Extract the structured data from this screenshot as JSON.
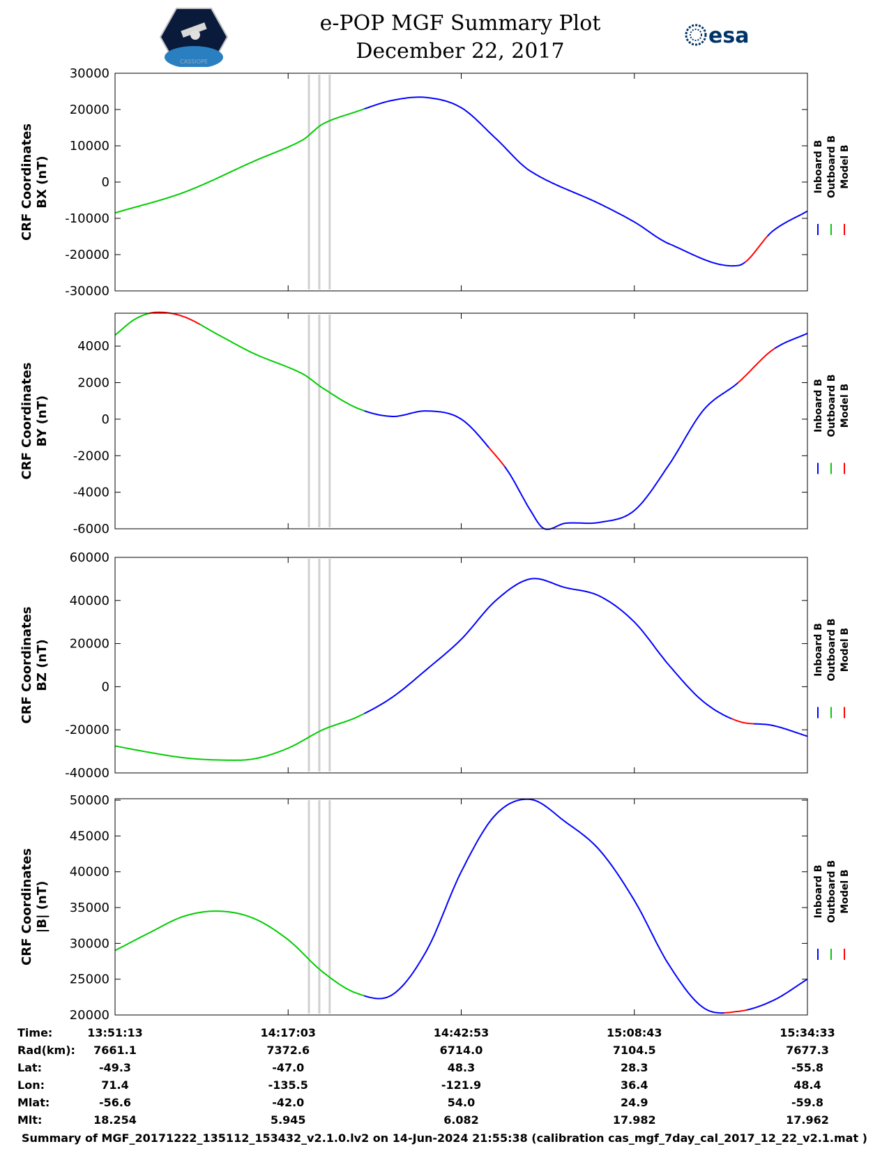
{
  "header": {
    "title": "e-POP MGF Summary Plot",
    "date": "December 22, 2017",
    "left_logo_text": "CASSIOPE",
    "right_logo_text": "esa"
  },
  "colors": {
    "inboard": "#0000ff",
    "outboard": "#00cc00",
    "model": "#ff0000",
    "gap": "#d0d0d0"
  },
  "legend": {
    "labels": [
      "Inboard B",
      "Outboard B",
      "Model B"
    ]
  },
  "chart_data": [
    {
      "type": "line",
      "ylabel_line1": "CRF Coordinates",
      "ylabel_line2": "BX (nT)",
      "ylim": [
        -30000,
        30000
      ],
      "yticks": [
        -30000,
        -20000,
        -10000,
        0,
        10000,
        20000,
        30000
      ],
      "ytick_labels": [
        "-30000",
        "-20000",
        "-10000",
        "0",
        "10000",
        "20000",
        "30000"
      ],
      "x_minutes": [
        0,
        10,
        20,
        27,
        30,
        35,
        40,
        45,
        50,
        55,
        60,
        70,
        75,
        80,
        90,
        95,
        100
      ],
      "values": [
        -8500,
        -2800,
        5700,
        11500,
        16000,
        19500,
        22500,
        23300,
        20500,
        12000,
        3000,
        -6000,
        -11000,
        -17000,
        -23000,
        -13500,
        -8000
      ],
      "green_until_min": 36,
      "red_segments_min": [
        [
          91,
          94
        ]
      ]
    },
    {
      "type": "line",
      "ylabel_line1": "CRF Coordinates",
      "ylabel_line2": "BY (nT)",
      "ylim": [
        -6000,
        5800
      ],
      "yticks": [
        -6000,
        -4000,
        -2000,
        0,
        2000,
        4000
      ],
      "ytick_labels": [
        "-6000",
        "-4000",
        "-2000",
        "0",
        "2000",
        "4000"
      ],
      "x_minutes": [
        0,
        3,
        6,
        10,
        15,
        20,
        27,
        30,
        35,
        40,
        45,
        50,
        55,
        57,
        60,
        62,
        65,
        70,
        75,
        80,
        85,
        90,
        95,
        100
      ],
      "values": [
        4600,
        5500,
        5850,
        5600,
        4600,
        3600,
        2500,
        1700,
        600,
        150,
        450,
        0,
        -2000,
        -3000,
        -5000,
        -6000,
        -5700,
        -5650,
        -5000,
        -2500,
        500,
        2000,
        3800,
        4700
      ],
      "green_until_min": 36,
      "red_segments_min": [
        [
          5,
          12
        ],
        [
          54,
          56
        ],
        [
          90,
          95
        ]
      ]
    },
    {
      "type": "line",
      "ylabel_line1": "CRF Coordinates",
      "ylabel_line2": "BZ (nT)",
      "ylim": [
        -40000,
        60000
      ],
      "yticks": [
        -40000,
        -20000,
        0,
        20000,
        40000,
        60000
      ],
      "ytick_labels": [
        "-40000",
        "-20000",
        "0",
        "20000",
        "40000",
        "60000"
      ],
      "x_minutes": [
        0,
        5,
        10,
        15,
        20,
        25,
        30,
        35,
        40,
        45,
        50,
        55,
        60,
        65,
        70,
        75,
        80,
        85,
        90,
        95,
        100
      ],
      "values": [
        -27500,
        -30500,
        -33000,
        -34000,
        -33500,
        -28500,
        -20000,
        -14000,
        -5000,
        8000,
        22000,
        40000,
        50000,
        46000,
        42000,
        30000,
        10000,
        -7000,
        -16000,
        -18000,
        -23000
      ],
      "green_until_min": 36,
      "red_segments_min": [
        [
          89,
          92
        ]
      ]
    },
    {
      "type": "line",
      "ylabel_line1": "CRF Coordinates",
      "ylabel_line2": "|B| (nT)",
      "ylim": [
        20000,
        50200
      ],
      "yticks": [
        20000,
        25000,
        30000,
        35000,
        40000,
        45000,
        50000
      ],
      "ytick_labels": [
        "20000",
        "25000",
        "30000",
        "35000",
        "40000",
        "45000",
        "50000"
      ],
      "x_minutes": [
        0,
        5,
        10,
        15,
        20,
        25,
        30,
        35,
        40,
        45,
        50,
        55,
        60,
        65,
        70,
        75,
        80,
        85,
        90,
        95,
        100
      ],
      "values": [
        29000,
        31500,
        33800,
        34500,
        33500,
        30500,
        26000,
        23000,
        22800,
        29000,
        40000,
        48000,
        50100,
        47000,
        43000,
        36000,
        27000,
        21000,
        20500,
        22000,
        25000
      ],
      "green_until_min": 36,
      "red_segments_min": [
        [
          88,
          91
        ]
      ]
    }
  ],
  "shared_x": {
    "range_min": [
      0,
      100
    ],
    "tick_min": [
      0,
      25,
      50,
      75,
      100
    ],
    "gap_lines_min": [
      28,
      29.5,
      31
    ]
  },
  "ephemeris": {
    "row_labels": [
      "Time:",
      "Rad(km):",
      "Lat:",
      "Lon:",
      "Mlat:",
      "Mlt:"
    ],
    "columns": [
      [
        "13:51:13",
        "7661.1",
        "-49.3",
        "71.4",
        "-56.6",
        "18.254"
      ],
      [
        "14:17:03",
        "7372.6",
        "-47.0",
        "-135.5",
        "-42.0",
        "5.945"
      ],
      [
        "14:42:53",
        "6714.0",
        "48.3",
        "-121.9",
        "54.0",
        "6.082"
      ],
      [
        "15:08:43",
        "7104.5",
        "28.3",
        "36.4",
        "24.9",
        "17.982"
      ],
      [
        "15:34:33",
        "7677.3",
        "-55.8",
        "48.4",
        "-59.8",
        "17.962"
      ]
    ]
  },
  "footer": "Summary of MGF_20171222_135112_153432_v2.1.0.lv2 on 14-Jun-2024 21:55:38 (calibration cas_mgf_7day_cal_2017_12_22_v2.1.mat )"
}
